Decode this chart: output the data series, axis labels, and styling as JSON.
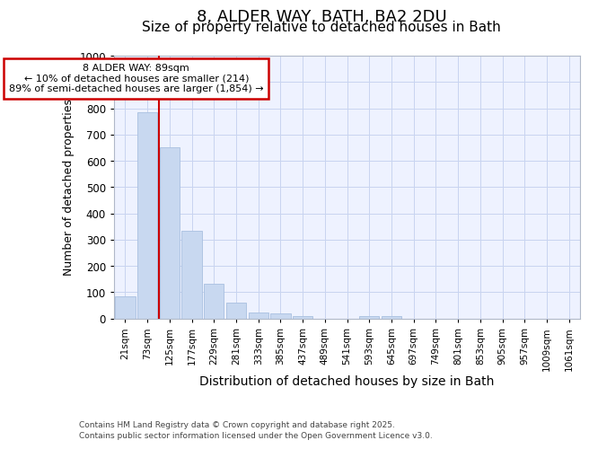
{
  "title1": "8, ALDER WAY, BATH, BA2 2DU",
  "title2": "Size of property relative to detached houses in Bath",
  "xlabel": "Distribution of detached houses by size in Bath",
  "ylabel": "Number of detached properties",
  "categories": [
    "21sqm",
    "73sqm",
    "125sqm",
    "177sqm",
    "229sqm",
    "281sqm",
    "333sqm",
    "385sqm",
    "437sqm",
    "489sqm",
    "541sqm",
    "593sqm",
    "645sqm",
    "697sqm",
    "749sqm",
    "801sqm",
    "853sqm",
    "905sqm",
    "957sqm",
    "1009sqm",
    "1061sqm"
  ],
  "values": [
    85,
    785,
    650,
    335,
    133,
    60,
    23,
    18,
    10,
    0,
    0,
    8,
    8,
    0,
    0,
    0,
    0,
    0,
    0,
    0,
    0
  ],
  "bar_color": "#c8d8f0",
  "bar_edge_color": "#a8c0e0",
  "red_line_x": 1.5,
  "annotation_line1": "8 ALDER WAY: 89sqm",
  "annotation_line2": "← 10% of detached houses are smaller (214)",
  "annotation_line3": "89% of semi-detached houses are larger (1,854) →",
  "annotation_box_color": "#ffffff",
  "annotation_box_edge": "#cc0000",
  "ylim": [
    0,
    1000
  ],
  "yticks": [
    0,
    100,
    200,
    300,
    400,
    500,
    600,
    700,
    800,
    900,
    1000
  ],
  "background_color": "#eef2ff",
  "grid_color": "#c8d4f0",
  "footer_line1": "Contains HM Land Registry data © Crown copyright and database right 2025.",
  "footer_line2": "Contains public sector information licensed under the Open Government Licence v3.0.",
  "title_fontsize": 13,
  "subtitle_fontsize": 11,
  "ylabel_fontsize": 9,
  "xlabel_fontsize": 10
}
